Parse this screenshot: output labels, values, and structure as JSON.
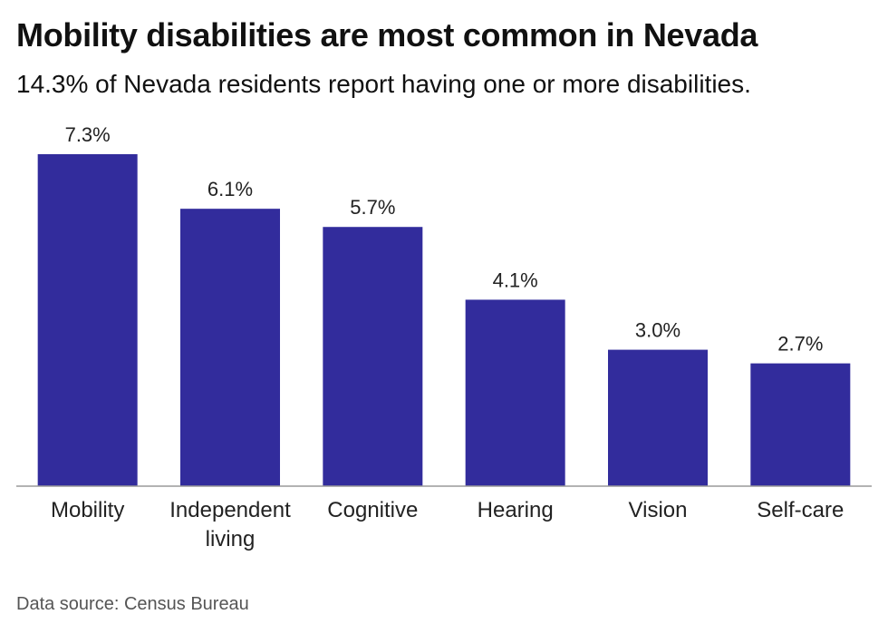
{
  "header": {
    "title": "Mobility disabilities are most common in Nevada",
    "subtitle": "14.3% of Nevada residents report having one or more disabilities."
  },
  "footer": {
    "source": "Data source: Census Bureau"
  },
  "chart_data": {
    "type": "bar",
    "categories": [
      "Mobility",
      "Independent living",
      "Cognitive",
      "Hearing",
      "Vision",
      "Self-care"
    ],
    "category_lines": [
      [
        "Mobility"
      ],
      [
        "Independent",
        "living"
      ],
      [
        "Cognitive"
      ],
      [
        "Hearing"
      ],
      [
        "Vision"
      ],
      [
        "Self-care"
      ]
    ],
    "values": [
      7.3,
      6.1,
      5.7,
      4.1,
      3.0,
      2.7
    ],
    "value_labels": [
      "7.3%",
      "6.1%",
      "5.7%",
      "4.1%",
      "3.0%",
      "2.7%"
    ],
    "ylim": [
      0,
      7.3
    ],
    "bar_color": "#322c9c",
    "grid": false,
    "legend": "none"
  }
}
